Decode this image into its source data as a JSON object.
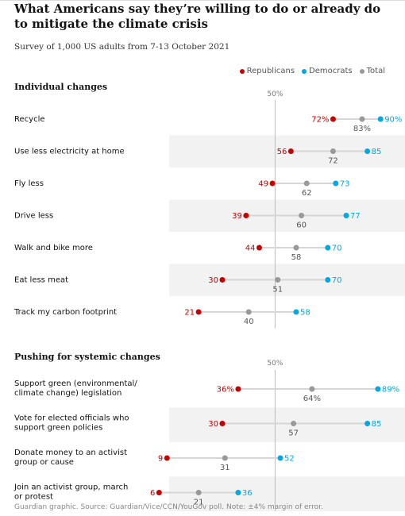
{
  "title": "What Americans say they’re willing to do or already do to mitigate the climate crisis",
  "subtitle": "Survey of 1,000 US adults from 7-13 October 2021",
  "footer": "Guardian graphic. Source: Guardian/Vice/CCN/YouGov poll. Note: ±4% margin of error.",
  "colors": {
    "republicans": "#c70000",
    "democrats": "#00a8e6",
    "total": "#999999",
    "band": "#f2f2f2",
    "connector": "#d6d6d6"
  },
  "legend": {
    "republicans": "Republicans",
    "democrats": "Democrats",
    "total": "Total"
  },
  "chart_data": {
    "type": "dot-plot",
    "midline_label": "50%",
    "midline_value": 50,
    "series": [
      "Republicans",
      "Democrats",
      "Total"
    ],
    "sections": [
      {
        "title": "Individual changes",
        "rows": [
          {
            "label": [
              "Recycle"
            ],
            "republicans": 72,
            "total": 83,
            "democrats": 90,
            "r_label": "72%",
            "t_label": "83%",
            "d_label": "90%"
          },
          {
            "label": [
              "Use less electricity at home"
            ],
            "republicans": 56,
            "total": 72,
            "democrats": 85,
            "r_label": "56",
            "t_label": "72",
            "d_label": "85"
          },
          {
            "label": [
              "Fly less"
            ],
            "republicans": 49,
            "total": 62,
            "democrats": 73,
            "r_label": "49",
            "t_label": "62",
            "d_label": "73"
          },
          {
            "label": [
              "Drive less"
            ],
            "republicans": 39,
            "total": 60,
            "democrats": 77,
            "r_label": "39",
            "t_label": "60",
            "d_label": "77"
          },
          {
            "label": [
              "Walk and bike more"
            ],
            "republicans": 44,
            "total": 58,
            "democrats": 70,
            "r_label": "44",
            "t_label": "58",
            "d_label": "70"
          },
          {
            "label": [
              "Eat less meat"
            ],
            "republicans": 30,
            "total": 51,
            "democrats": 70,
            "r_label": "30",
            "t_label": "51",
            "d_label": "70"
          },
          {
            "label": [
              "Track my carbon footprint"
            ],
            "republicans": 21,
            "total": 40,
            "democrats": 58,
            "r_label": "21",
            "t_label": "40",
            "d_label": "58"
          }
        ]
      },
      {
        "title": "Pushing for systemic changes",
        "rows": [
          {
            "label": [
              "Support green (environmental/",
              "climate change) legislation"
            ],
            "republicans": 36,
            "total": 64,
            "democrats": 89,
            "r_label": "36%",
            "t_label": "64%",
            "d_label": "89%"
          },
          {
            "label": [
              "Vote for elected officials who",
              "support green policies"
            ],
            "republicans": 30,
            "total": 57,
            "democrats": 85,
            "r_label": "30",
            "t_label": "57",
            "d_label": "85"
          },
          {
            "label": [
              "Donate money to an activist",
              "group or cause"
            ],
            "republicans": 9,
            "total": 31,
            "democrats": 52,
            "r_label": "9",
            "t_label": "31",
            "d_label": "52"
          },
          {
            "label": [
              "Join an activist group, march",
              "or protest"
            ],
            "republicans": 6,
            "total": 21,
            "democrats": 36,
            "r_label": "6",
            "t_label": "21",
            "d_label": "36"
          }
        ]
      }
    ]
  }
}
